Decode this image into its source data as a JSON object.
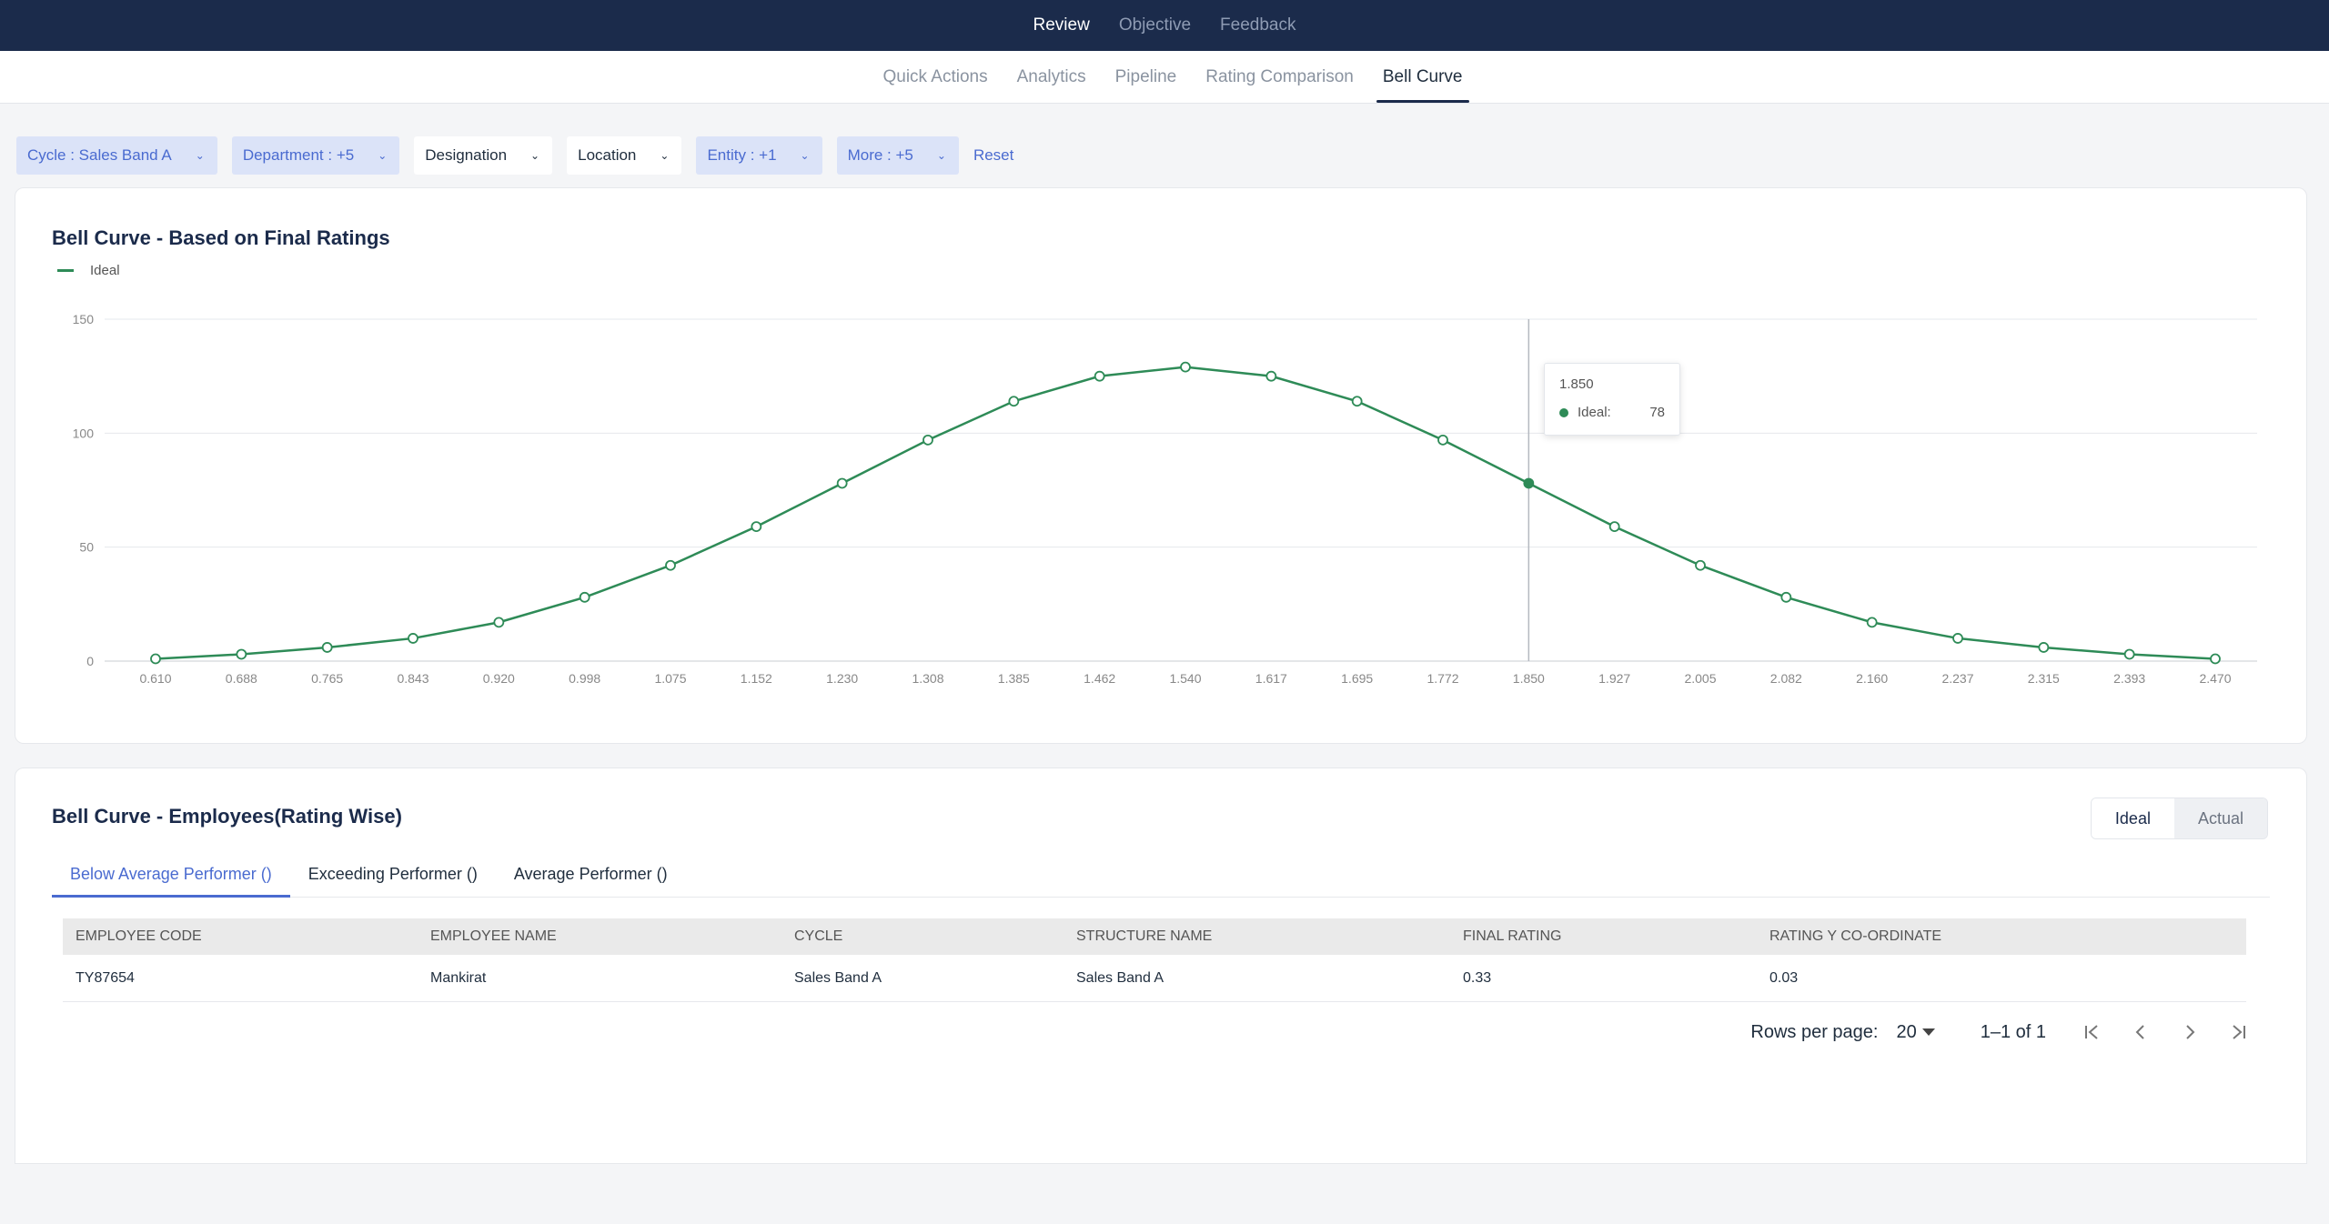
{
  "topnav": {
    "items": [
      {
        "label": "Review",
        "active": true
      },
      {
        "label": "Objective",
        "active": false
      },
      {
        "label": "Feedback",
        "active": false
      }
    ]
  },
  "subnav": {
    "tabs": [
      {
        "label": "Quick Actions"
      },
      {
        "label": "Analytics"
      },
      {
        "label": "Pipeline"
      },
      {
        "label": "Rating Comparison"
      },
      {
        "label": "Bell Curve",
        "active": true
      }
    ]
  },
  "filters": {
    "items": [
      {
        "label": "Cycle : Sales Band A",
        "applied": true
      },
      {
        "label": "Department : +5",
        "applied": true
      },
      {
        "label": "Designation",
        "applied": false
      },
      {
        "label": "Location",
        "applied": false
      },
      {
        "label": "Entity : +1",
        "applied": true
      },
      {
        "label": "More : +5",
        "applied": true
      }
    ],
    "reset_label": "Reset"
  },
  "chart_card": {
    "title": "Bell Curve - Based on Final Ratings"
  },
  "chart_data": {
    "type": "line",
    "title": "Bell Curve - Based on Final Ratings",
    "x": [
      "0.610",
      "0.688",
      "0.765",
      "0.843",
      "0.920",
      "0.998",
      "1.075",
      "1.152",
      "1.230",
      "1.308",
      "1.385",
      "1.462",
      "1.540",
      "1.617",
      "1.695",
      "1.772",
      "1.850",
      "1.927",
      "2.005",
      "2.082",
      "2.160",
      "2.237",
      "2.315",
      "2.393",
      "2.470"
    ],
    "series": [
      {
        "name": "Ideal",
        "color": "#2e8b57",
        "values": [
          1,
          3,
          6,
          10,
          17,
          28,
          42,
          59,
          78,
          97,
          114,
          125,
          129,
          125,
          114,
          97,
          78,
          59,
          42,
          28,
          17,
          10,
          6,
          3,
          1
        ]
      }
    ],
    "ylim": [
      0,
      150
    ],
    "yticks": [
      0,
      50,
      100,
      150
    ],
    "grid": true,
    "legend": "top-left",
    "hover_index": 16,
    "tooltip": {
      "x_label": "1.850",
      "series_label": "Ideal:",
      "value": "78"
    }
  },
  "employees_card": {
    "title": "Bell Curve - Employees(Rating Wise)",
    "toggle": {
      "options": [
        "Ideal",
        "Actual"
      ],
      "selected": "Ideal"
    },
    "tabs": [
      {
        "label": "Below Average Performer ()",
        "active": true
      },
      {
        "label": "Exceeding Performer ()"
      },
      {
        "label": "Average Performer ()"
      }
    ],
    "table": {
      "headers": [
        "EMPLOYEE CODE",
        "EMPLOYEE NAME",
        "CYCLE",
        "STRUCTURE NAME",
        "FINAL RATING",
        "RATING Y CO-ORDINATE"
      ],
      "rows": [
        [
          "TY87654",
          "Mankirat",
          "Sales Band A",
          "Sales Band A",
          "0.33",
          "0.03"
        ]
      ]
    },
    "pagination": {
      "rows_per_page_label": "Rows per page:",
      "rows_per_page": "20",
      "range": "1–1 of 1"
    }
  }
}
